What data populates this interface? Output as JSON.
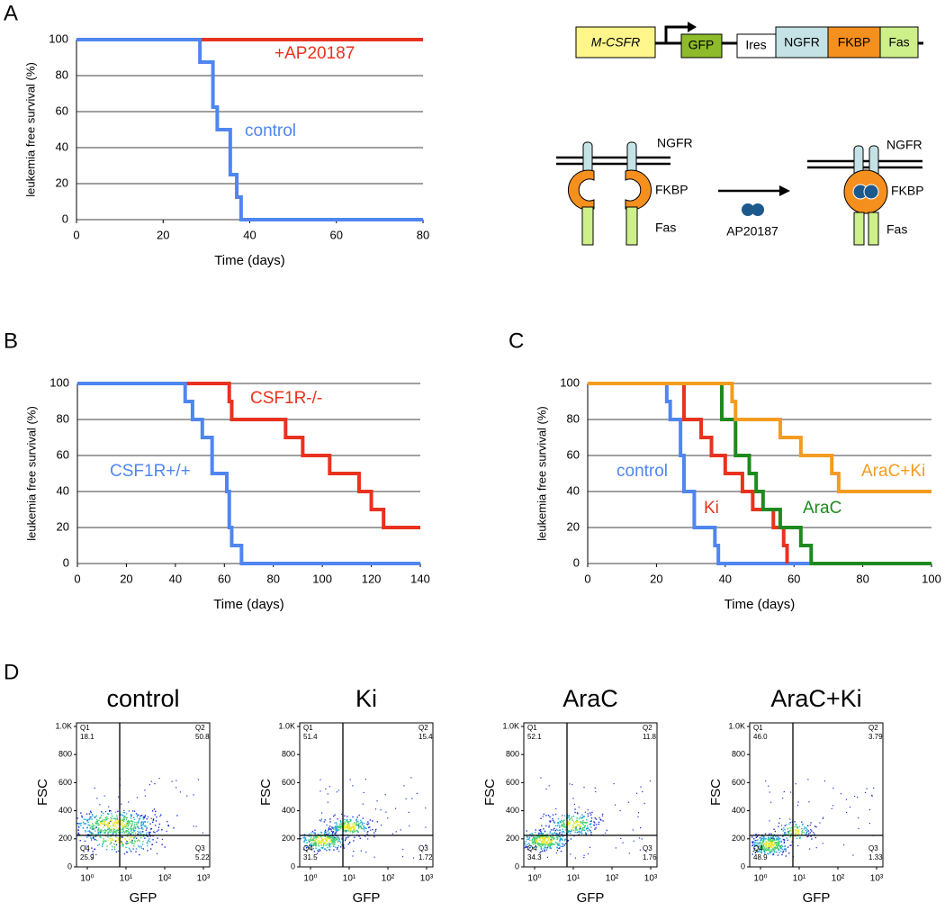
{
  "panel_letters": [
    "A",
    "B",
    "C",
    "D"
  ],
  "chart_data": [
    {
      "type": "line",
      "step": true,
      "ylabel": "leukemia free survival (%)",
      "xlabel": "Time (days)",
      "xlim": [
        0,
        80
      ],
      "xticks": [
        0,
        20,
        40,
        60,
        80
      ],
      "ylim": [
        0,
        100
      ],
      "yticks": [
        0,
        20,
        40,
        60,
        80,
        100
      ],
      "grid": true,
      "series": [
        {
          "name": "+AP20187",
          "color": "#e8321e",
          "x": [
            0,
            80
          ],
          "values": [
            100,
            100
          ]
        },
        {
          "name": "control",
          "color": "#4f86f0",
          "x": [
            0,
            28.5,
            31.5,
            32.5,
            35.5,
            37,
            38,
            80
          ],
          "values": [
            100,
            87.5,
            62.5,
            50,
            25,
            12.5,
            0,
            0
          ]
        }
      ]
    },
    {
      "type": "line",
      "step": true,
      "ylabel": "leukemia free survival (%)",
      "xlabel": "Time (days)",
      "xlim": [
        0,
        140
      ],
      "xticks": [
        0,
        20,
        40,
        60,
        80,
        100,
        120,
        140
      ],
      "ylim": [
        0,
        100
      ],
      "yticks": [
        0,
        20,
        40,
        60,
        80,
        100
      ],
      "grid": true,
      "series": [
        {
          "name": "CSF1R-/-",
          "color": "#e8321e",
          "x": [
            0,
            62,
            63,
            85,
            92,
            103,
            115,
            120,
            125,
            140
          ],
          "values": [
            100,
            90,
            80,
            70,
            60,
            50,
            40,
            30,
            20,
            20
          ]
        },
        {
          "name": "CSF1R+/+",
          "color": "#4f86f0",
          "x": [
            0,
            44,
            47,
            51,
            55,
            61,
            62,
            63,
            67,
            140
          ],
          "values": [
            100,
            90,
            80,
            70,
            50,
            40,
            20,
            10,
            0,
            0
          ]
        }
      ]
    },
    {
      "type": "line",
      "step": true,
      "ylabel": "leukemia free survival (%)",
      "xlabel": "Time (days)",
      "xlim": [
        0,
        100
      ],
      "xticks": [
        0,
        20,
        40,
        60,
        80,
        100
      ],
      "ylim": [
        0,
        100
      ],
      "yticks": [
        0,
        20,
        40,
        60,
        80,
        100
      ],
      "grid": true,
      "series": [
        {
          "name": "control",
          "color": "#4f86f0",
          "x": [
            0,
            23,
            24,
            27,
            28,
            31,
            37,
            38,
            100
          ],
          "values": [
            100,
            90,
            80,
            60,
            40,
            20,
            10,
            0,
            0
          ]
        },
        {
          "name": "Ki",
          "color": "#e8321e",
          "x": [
            0,
            28,
            33,
            36,
            40,
            45,
            48,
            54,
            57,
            58
          ],
          "values": [
            100,
            80,
            70,
            60,
            50,
            40,
            30,
            20,
            10,
            0
          ]
        },
        {
          "name": "AraC",
          "color": "#1e8a1e",
          "x": [
            0,
            39,
            43,
            47,
            49,
            51,
            56,
            62,
            65,
            100
          ],
          "values": [
            100,
            80,
            60,
            50,
            40,
            30,
            20,
            10,
            0,
            0
          ]
        },
        {
          "name": "AraC+Ki",
          "color": "#f39c1f",
          "x": [
            0,
            42,
            43,
            56,
            62,
            71,
            73,
            100
          ],
          "values": [
            100,
            90,
            80,
            70,
            60,
            50,
            40,
            40
          ]
        }
      ]
    }
  ],
  "diagram": {
    "construct": [
      "M-CSFR",
      "GFP",
      "Ires",
      "NGFR",
      "FKBP",
      "Fas"
    ],
    "left": [
      "NGFR",
      "FKBP",
      "Fas"
    ],
    "drug": "AP20187",
    "right": [
      "NGFR",
      "FKBP",
      "Fas"
    ]
  },
  "flow": {
    "x_label": "GFP",
    "y_label": "FSC",
    "y_tick_labels": [
      "1.0K",
      "800",
      "600",
      "400",
      "200",
      "0"
    ],
    "x_tick_labels": [
      "10⁰",
      "10¹",
      "10²",
      "10³"
    ],
    "panels": [
      {
        "title": "control",
        "quadrants": [
          [
            "Q1",
            "18.1"
          ],
          [
            "Q2",
            "50.8"
          ],
          [
            "Q3",
            "5.22"
          ],
          [
            "Q4",
            "25.9"
          ]
        ]
      },
      {
        "title": "Ki",
        "quadrants": [
          [
            "Q1",
            "51.4"
          ],
          [
            "Q2",
            "15.4"
          ],
          [
            "Q3",
            "1.72"
          ],
          [
            "Q4",
            "31.5"
          ]
        ]
      },
      {
        "title": "AraC",
        "quadrants": [
          [
            "Q1",
            "52.1"
          ],
          [
            "Q2",
            "11.8"
          ],
          [
            "Q3",
            "1.76"
          ],
          [
            "Q4",
            "34.3"
          ]
        ]
      },
      {
        "title": "AraC+Ki",
        "quadrants": [
          [
            "Q1",
            "46.0"
          ],
          [
            "Q2",
            "3.79"
          ],
          [
            "Q3",
            "1.33"
          ],
          [
            "Q4",
            "48.9"
          ]
        ]
      }
    ]
  }
}
